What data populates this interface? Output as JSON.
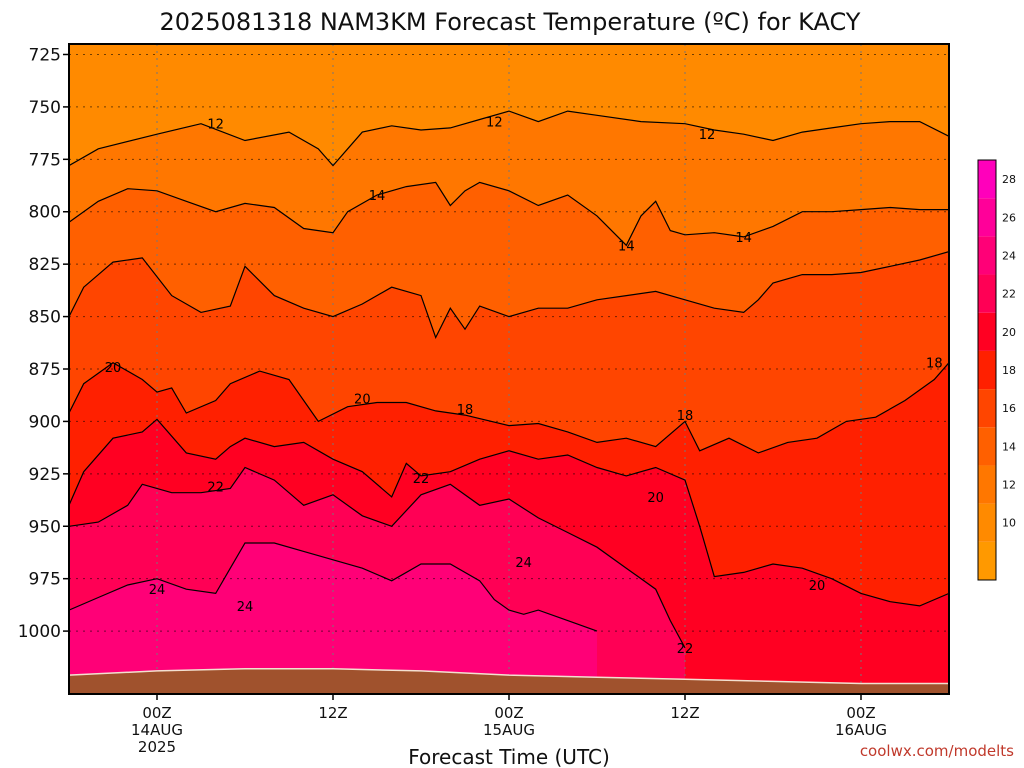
{
  "chart_data": {
    "type": "heatmap",
    "title": "2025081318 NAM3KM Forecast Temperature (ºC) for KACY",
    "xlabel": "Forecast Time (UTC)",
    "ylabel": "",
    "y_axis": {
      "label": "",
      "ticks": [
        725,
        750,
        775,
        800,
        825,
        850,
        875,
        900,
        925,
        950,
        975,
        1000
      ],
      "range": [
        720,
        1030
      ],
      "inverted": true
    },
    "x_axis": {
      "ticks": [
        {
          "t": 0,
          "lines": [
            "00Z",
            "14AUG",
            "2025"
          ]
        },
        {
          "t": 12,
          "lines": [
            "12Z"
          ]
        },
        {
          "t": 24,
          "lines": [
            "00Z",
            "15AUG"
          ]
        },
        {
          "t": 36,
          "lines": [
            "12Z"
          ]
        },
        {
          "t": 48,
          "lines": [
            "00Z",
            "16AUG"
          ]
        }
      ],
      "range": [
        -6,
        54
      ]
    },
    "colorbar": {
      "levels": [
        8,
        10,
        12,
        14,
        16,
        18,
        20,
        22,
        24,
        26,
        28,
        30
      ],
      "labels": [
        "10",
        "12",
        "14",
        "16",
        "18",
        "20",
        "22",
        "24",
        "26",
        "28"
      ],
      "colors": [
        "#ff9900",
        "#ff8a00",
        "#ff7700",
        "#ff6000",
        "#ff4500",
        "#ff2000",
        "#ff0022",
        "#ff0055",
        "#ff0077",
        "#ff0099",
        "#ff00bb"
      ]
    },
    "contours": [
      {
        "value": 12,
        "points": [
          [
            -6,
            778
          ],
          [
            -4,
            770
          ],
          [
            0,
            763
          ],
          [
            3,
            758
          ],
          [
            6,
            766
          ],
          [
            9,
            762
          ],
          [
            11,
            770
          ],
          [
            12,
            778
          ],
          [
            13,
            770
          ],
          [
            14,
            762
          ],
          [
            16,
            759
          ],
          [
            18,
            761
          ],
          [
            20,
            760
          ],
          [
            22,
            756
          ],
          [
            24,
            752
          ],
          [
            26,
            757
          ],
          [
            28,
            752
          ],
          [
            30,
            754
          ],
          [
            33,
            757
          ],
          [
            36,
            758
          ],
          [
            38,
            761
          ],
          [
            40,
            763
          ],
          [
            42,
            766
          ],
          [
            44,
            762
          ],
          [
            46,
            760
          ],
          [
            48,
            758
          ],
          [
            50,
            757
          ],
          [
            52,
            757
          ],
          [
            54,
            764
          ]
        ]
      },
      {
        "value": 14,
        "points": [
          [
            -6,
            805
          ],
          [
            -4,
            795
          ],
          [
            -2,
            789
          ],
          [
            0,
            790
          ],
          [
            2,
            795
          ],
          [
            4,
            800
          ],
          [
            6,
            796
          ],
          [
            8,
            798
          ],
          [
            10,
            808
          ],
          [
            12,
            810
          ],
          [
            13,
            800
          ],
          [
            15,
            792
          ],
          [
            17,
            788
          ],
          [
            19,
            786
          ],
          [
            20,
            797
          ],
          [
            21,
            790
          ],
          [
            22,
            786
          ],
          [
            24,
            790
          ],
          [
            26,
            797
          ],
          [
            28,
            792
          ],
          [
            30,
            802
          ],
          [
            32,
            816
          ],
          [
            33,
            802
          ],
          [
            34,
            795
          ],
          [
            35,
            809
          ],
          [
            36,
            811
          ],
          [
            38,
            810
          ],
          [
            40,
            812
          ],
          [
            42,
            807
          ],
          [
            44,
            800
          ],
          [
            46,
            800
          ],
          [
            48,
            799
          ],
          [
            50,
            798
          ],
          [
            52,
            799
          ],
          [
            54,
            799
          ]
        ]
      },
      {
        "value": 16,
        "points": [
          [
            -6,
            850
          ],
          [
            -5,
            836
          ],
          [
            -3,
            824
          ],
          [
            -1,
            822
          ],
          [
            1,
            840
          ],
          [
            3,
            848
          ],
          [
            5,
            845
          ],
          [
            6,
            826
          ],
          [
            8,
            840
          ],
          [
            10,
            846
          ],
          [
            12,
            850
          ],
          [
            14,
            844
          ],
          [
            16,
            836
          ],
          [
            18,
            840
          ],
          [
            19,
            860
          ],
          [
            20,
            846
          ],
          [
            21,
            856
          ],
          [
            22,
            845
          ],
          [
            24,
            850
          ],
          [
            26,
            846
          ],
          [
            28,
            846
          ],
          [
            30,
            842
          ],
          [
            32,
            840
          ],
          [
            34,
            838
          ],
          [
            36,
            842
          ],
          [
            38,
            846
          ],
          [
            40,
            848
          ],
          [
            41,
            842
          ],
          [
            42,
            834
          ],
          [
            44,
            830
          ],
          [
            46,
            830
          ],
          [
            48,
            829
          ],
          [
            50,
            826
          ],
          [
            52,
            823
          ],
          [
            54,
            819
          ]
        ]
      },
      {
        "value": 18,
        "points": [
          [
            -6,
            896
          ],
          [
            -5,
            882
          ],
          [
            -3,
            872
          ],
          [
            -1,
            880
          ],
          [
            0,
            886
          ],
          [
            1,
            884
          ],
          [
            2,
            896
          ],
          [
            4,
            890
          ],
          [
            5,
            882
          ],
          [
            7,
            876
          ],
          [
            9,
            880
          ],
          [
            11,
            900
          ],
          [
            13,
            893
          ],
          [
            15,
            891
          ],
          [
            17,
            891
          ],
          [
            19,
            895
          ],
          [
            21,
            897
          ],
          [
            24,
            902
          ],
          [
            26,
            901
          ],
          [
            28,
            905
          ],
          [
            30,
            910
          ],
          [
            32,
            908
          ],
          [
            34,
            912
          ],
          [
            36,
            900
          ],
          [
            37,
            914
          ],
          [
            39,
            908
          ],
          [
            41,
            915
          ],
          [
            43,
            910
          ],
          [
            45,
            908
          ],
          [
            47,
            900
          ],
          [
            49,
            898
          ],
          [
            51,
            890
          ],
          [
            53,
            880
          ],
          [
            54,
            872
          ]
        ]
      },
      {
        "value": 20,
        "points": [
          [
            -6,
            940
          ],
          [
            -5,
            924
          ],
          [
            -3,
            908
          ],
          [
            -1,
            905
          ],
          [
            0,
            899
          ],
          [
            2,
            915
          ],
          [
            4,
            918
          ],
          [
            5,
            912
          ],
          [
            6,
            908
          ],
          [
            8,
            912
          ],
          [
            10,
            910
          ],
          [
            12,
            918
          ],
          [
            14,
            924
          ],
          [
            16,
            936
          ],
          [
            17,
            920
          ],
          [
            18,
            926
          ],
          [
            20,
            924
          ],
          [
            22,
            918
          ],
          [
            24,
            914
          ],
          [
            26,
            918
          ],
          [
            28,
            916
          ],
          [
            30,
            922
          ],
          [
            32,
            926
          ],
          [
            34,
            922
          ],
          [
            36,
            928
          ],
          [
            37,
            950
          ],
          [
            38,
            974
          ],
          [
            40,
            972
          ],
          [
            42,
            968
          ],
          [
            44,
            970
          ],
          [
            46,
            975
          ],
          [
            48,
            982
          ],
          [
            50,
            986
          ],
          [
            52,
            988
          ],
          [
            54,
            982
          ]
        ]
      },
      {
        "value": 22,
        "points": [
          [
            -6,
            950
          ],
          [
            -4,
            948
          ],
          [
            -2,
            940
          ],
          [
            -1,
            930
          ],
          [
            1,
            934
          ],
          [
            3,
            934
          ],
          [
            5,
            932
          ],
          [
            6,
            922
          ],
          [
            8,
            928
          ],
          [
            10,
            940
          ],
          [
            12,
            935
          ],
          [
            14,
            945
          ],
          [
            16,
            950
          ],
          [
            18,
            935
          ],
          [
            20,
            930
          ],
          [
            22,
            940
          ],
          [
            24,
            937
          ],
          [
            26,
            946
          ],
          [
            28,
            953
          ],
          [
            30,
            960
          ],
          [
            32,
            970
          ],
          [
            34,
            980
          ],
          [
            35,
            995
          ],
          [
            36,
            1008
          ]
        ]
      },
      {
        "value": 24,
        "points": [
          [
            -6,
            990
          ],
          [
            -4,
            984
          ],
          [
            -2,
            978
          ],
          [
            0,
            975
          ],
          [
            2,
            980
          ],
          [
            4,
            982
          ],
          [
            5,
            970
          ],
          [
            6,
            958
          ],
          [
            8,
            958
          ],
          [
            10,
            962
          ],
          [
            12,
            966
          ],
          [
            14,
            970
          ],
          [
            16,
            976
          ],
          [
            18,
            968
          ],
          [
            20,
            968
          ],
          [
            22,
            976
          ],
          [
            23,
            985
          ],
          [
            24,
            990
          ],
          [
            25,
            992
          ],
          [
            26,
            990
          ],
          [
            28,
            995
          ],
          [
            30,
            1000
          ]
        ]
      }
    ],
    "contour_labels": [
      {
        "value": 12,
        "t": 4,
        "p": 758
      },
      {
        "value": 12,
        "t": 23,
        "p": 757
      },
      {
        "value": 12,
        "t": 37.5,
        "p": 763
      },
      {
        "value": 14,
        "t": 15,
        "p": 792
      },
      {
        "value": 14,
        "t": 32,
        "p": 816
      },
      {
        "value": 14,
        "t": 40,
        "p": 812
      },
      {
        "value": 18,
        "t": 21,
        "p": 894
      },
      {
        "value": 18,
        "t": 36,
        "p": 897
      },
      {
        "value": 18,
        "t": 53,
        "p": 872
      },
      {
        "value": 20,
        "t": -3,
        "p": 874
      },
      {
        "value": 20,
        "t": 14,
        "p": 889
      },
      {
        "value": 20,
        "t": 34,
        "p": 936
      },
      {
        "value": 20,
        "t": 45,
        "p": 978
      },
      {
        "value": 22,
        "t": 4,
        "p": 931
      },
      {
        "value": 22,
        "t": 18,
        "p": 927
      },
      {
        "value": 22,
        "t": 36,
        "p": 1008
      },
      {
        "value": 24,
        "t": 0,
        "p": 980
      },
      {
        "value": 24,
        "t": 6,
        "p": 988
      },
      {
        "value": 24,
        "t": 25,
        "p": 967
      }
    ],
    "surface_pressure": [
      [
        -6,
        1021
      ],
      [
        0,
        1019
      ],
      [
        6,
        1018
      ],
      [
        12,
        1018
      ],
      [
        18,
        1019
      ],
      [
        24,
        1021
      ],
      [
        30,
        1022
      ],
      [
        36,
        1023
      ],
      [
        42,
        1024
      ],
      [
        48,
        1025
      ],
      [
        54,
        1025
      ]
    ],
    "credit": "coolwx.com/modelts"
  }
}
